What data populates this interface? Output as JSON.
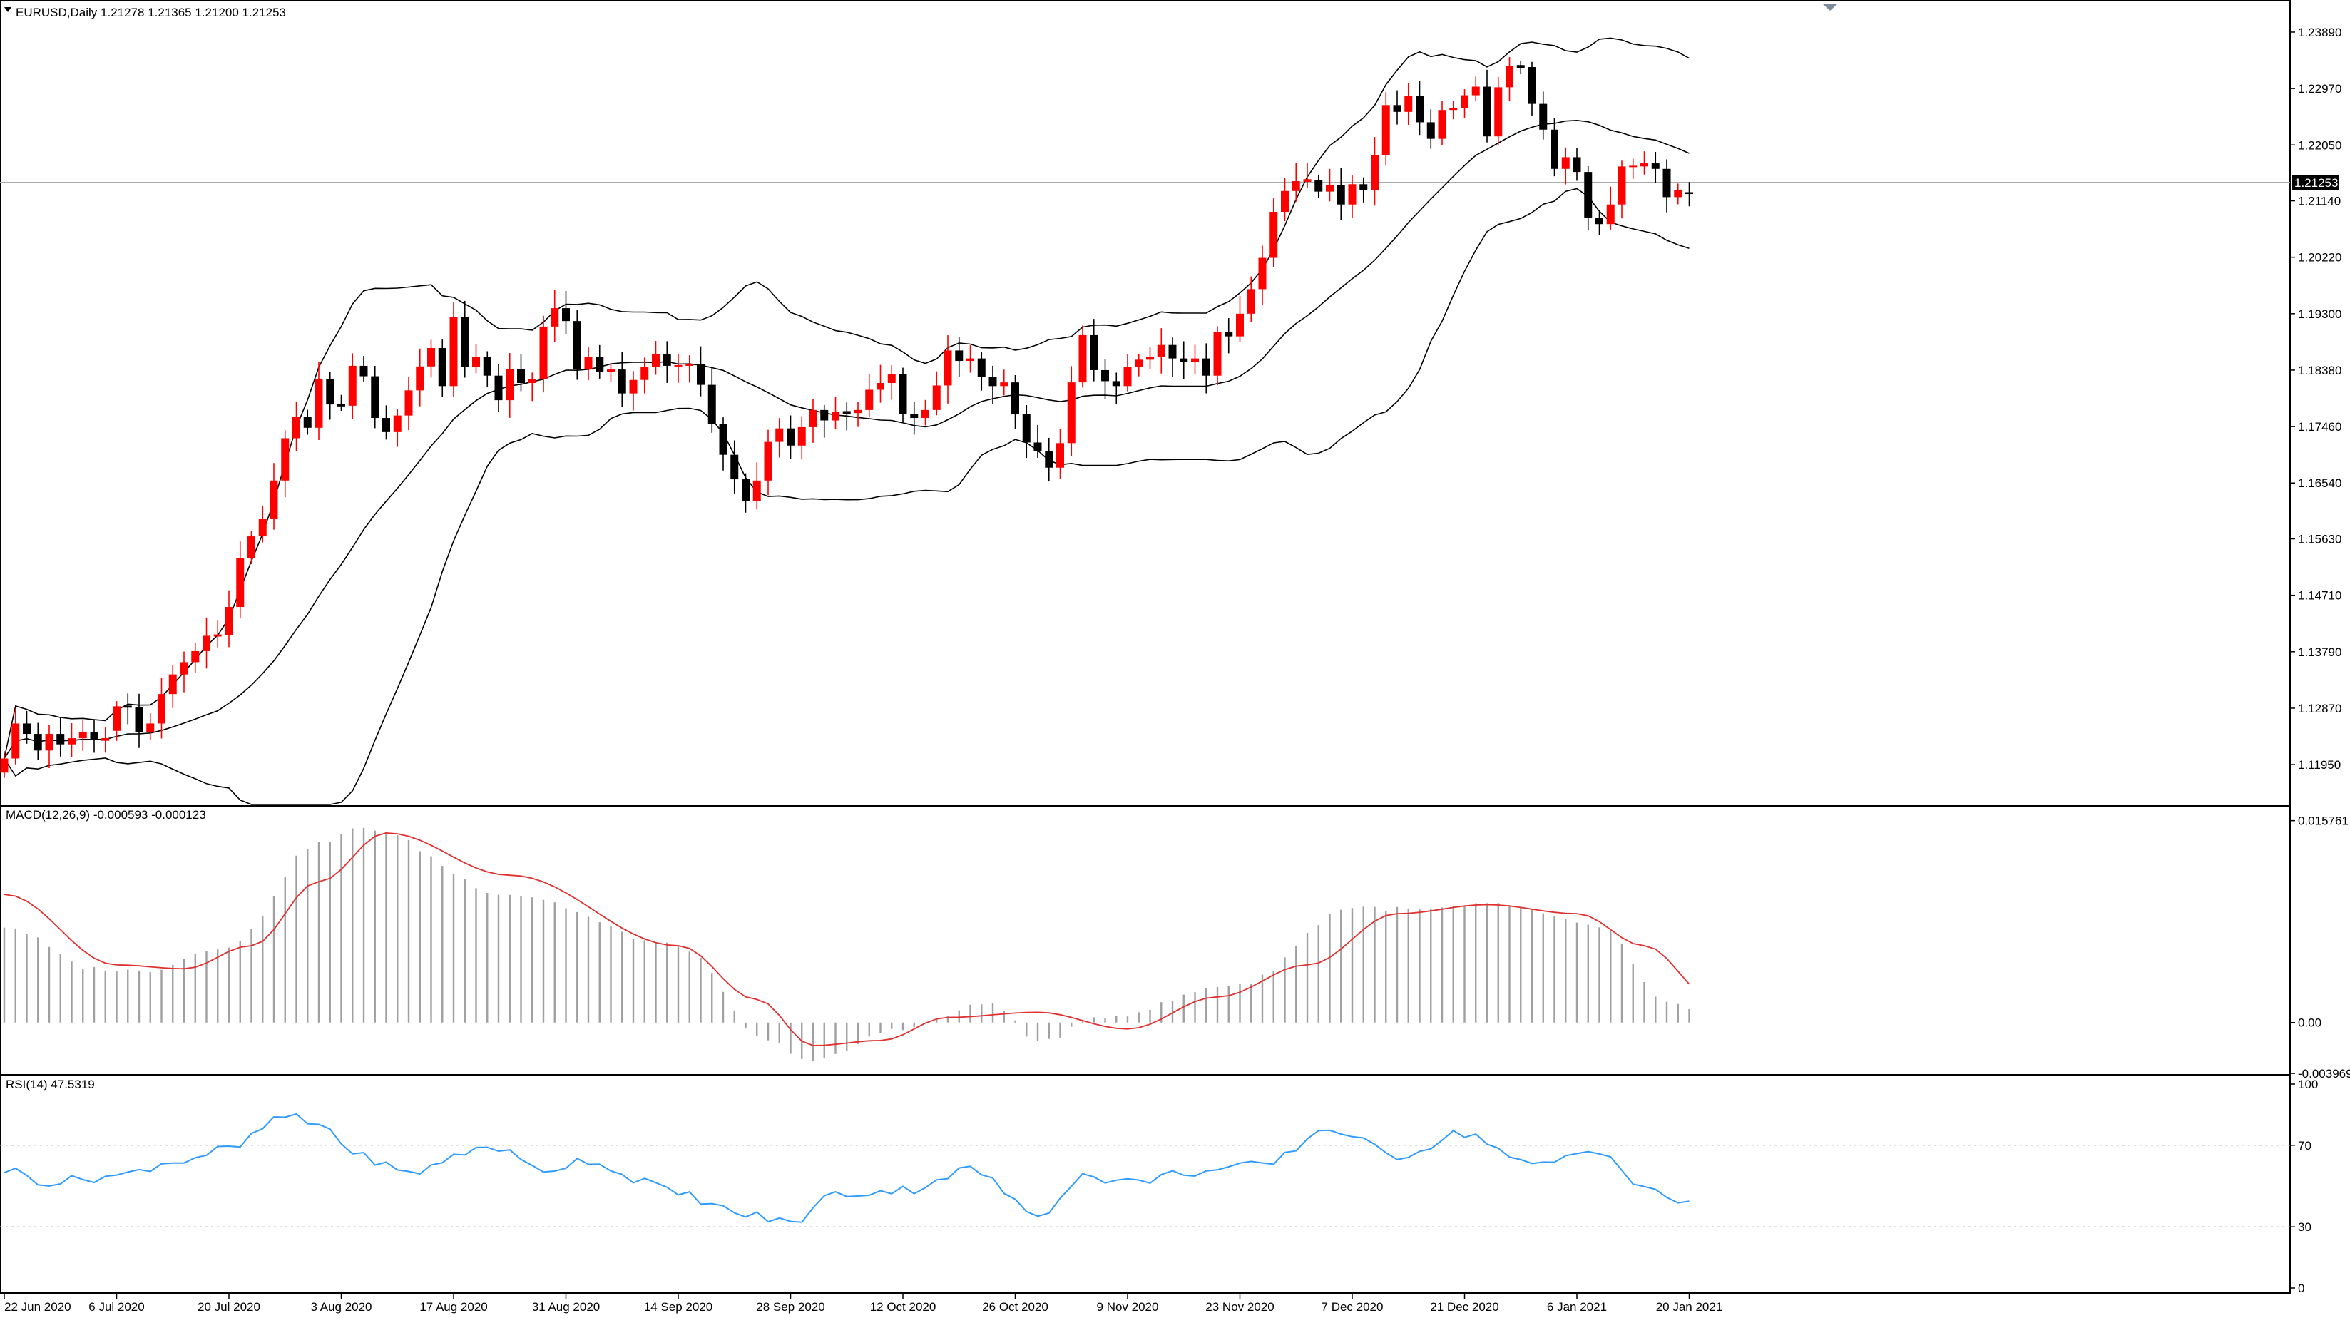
{
  "window": {
    "main_title": "EURUSD,Daily  1.21278 1.21365 1.21200 1.21253",
    "macd_title": "MACD(12,26,9) -0.000593 -0.000123",
    "rsi_title": "RSI(14) 47.5319",
    "current_price": "1.21253"
  },
  "colors": {
    "bull": "#ff0000",
    "bear": "#000000",
    "bands": "#000000",
    "macd_hist": "#a0a0a0",
    "macd_signal": "#e03030",
    "rsi": "#2f9bff",
    "grid_border": "#000000"
  },
  "chart_data": [
    {
      "type": "candlestick",
      "panel": "main",
      "symbol": "EURUSD",
      "timeframe": "Daily",
      "ylim": [
        1.113,
        1.2425
      ],
      "y_ticks": [
        "1.23890",
        "1.22970",
        "1.22050",
        "1.21140",
        "1.20220",
        "1.19300",
        "1.18380",
        "1.17460",
        "1.16540",
        "1.15630",
        "1.14710",
        "1.13790",
        "1.12870",
        "1.11950"
      ],
      "x_ticks": [
        "22 Jun 2020",
        "6 Jul 2020",
        "20 Jul 2020",
        "3 Aug 2020",
        "17 Aug 2020",
        "31 Aug 2020",
        "14 Sep 2020",
        "28 Sep 2020",
        "12 Oct 2020",
        "26 Oct 2020",
        "9 Nov 2020",
        "23 Nov 2020",
        "7 Dec 2020",
        "21 Dec 2020",
        "6 Jan 2021",
        "20 Jan 2021"
      ],
      "x_tick_index": [
        0,
        10,
        20,
        30,
        40,
        50,
        60,
        70,
        80,
        90,
        100,
        110,
        120,
        130,
        140,
        150
      ],
      "current_price": 1.21253,
      "candles_close": [
        1.1205,
        1.1262,
        1.1245,
        1.1218,
        1.1245,
        1.1228,
        1.1238,
        1.1248,
        1.1235,
        1.1237,
        1.129,
        1.1289,
        1.1248,
        1.1262,
        1.131,
        1.1342,
        1.1362,
        1.138,
        1.1405,
        1.1406,
        1.1452,
        1.1532,
        1.1567,
        1.1595,
        1.1658,
        1.1727,
        1.1762,
        1.1744,
        1.1823,
        1.1782,
        1.178,
        1.1845,
        1.1828,
        1.176,
        1.1737,
        1.1764,
        1.1805,
        1.1844,
        1.1874,
        1.1812,
        1.1924,
        1.1843,
        1.1859,
        1.1829,
        1.1789,
        1.184,
        1.1817,
        1.1824,
        1.1909,
        1.1939,
        1.1918,
        1.1839,
        1.186,
        1.1835,
        1.1839,
        1.18,
        1.1822,
        1.1843,
        1.1864,
        1.1845,
        1.1845,
        1.1848,
        1.1814,
        1.175,
        1.17,
        1.166,
        1.1625,
        1.1658,
        1.1721,
        1.1743,
        1.1715,
        1.1745,
        1.1773,
        1.1756,
        1.177,
        1.1768,
        1.1773,
        1.1806,
        1.1817,
        1.1832,
        1.1766,
        1.176,
        1.1773,
        1.1813,
        1.187,
        1.1853,
        1.1857,
        1.1827,
        1.1812,
        1.1818,
        1.1767,
        1.172,
        1.1706,
        1.1679,
        1.1719,
        1.1818,
        1.1895,
        1.1838,
        1.182,
        1.1812,
        1.1843,
        1.1855,
        1.186,
        1.1879,
        1.1857,
        1.1851,
        1.1857,
        1.1829,
        1.19,
        1.1893,
        1.193,
        1.197,
        1.2021,
        1.2096,
        1.213,
        1.2146,
        1.2148,
        1.2129,
        1.214,
        1.2108,
        1.2141,
        1.2131,
        1.2188,
        1.227,
        1.2259,
        1.2285,
        1.2242,
        1.2215,
        1.2262,
        1.2265,
        1.2286,
        1.23,
        1.2219,
        1.2299,
        1.2334,
        1.2332,
        1.2272,
        1.223,
        1.2166,
        1.2185,
        1.2161,
        1.2086,
        1.2076,
        1.2108,
        1.217,
        1.217,
        1.2175,
        1.2166,
        1.212,
        1.2132,
        1.2125
      ],
      "candles_open": [
        1.1182,
        1.1205,
        1.1262,
        1.1245,
        1.1218,
        1.1245,
        1.1228,
        1.1238,
        1.1248,
        1.1235,
        1.125,
        1.129,
        1.1289,
        1.1248,
        1.1262,
        1.131,
        1.1342,
        1.1362,
        1.138,
        1.1405,
        1.1406,
        1.1452,
        1.1532,
        1.1567,
        1.1595,
        1.1658,
        1.1727,
        1.1762,
        1.1744,
        1.1823,
        1.1782,
        1.178,
        1.1845,
        1.1828,
        1.176,
        1.1737,
        1.1764,
        1.1805,
        1.1844,
        1.1874,
        1.1812,
        1.1924,
        1.1843,
        1.1859,
        1.1829,
        1.1789,
        1.184,
        1.1817,
        1.1824,
        1.1909,
        1.1939,
        1.1918,
        1.1839,
        1.186,
        1.1835,
        1.1839,
        1.18,
        1.1822,
        1.1843,
        1.1864,
        1.1845,
        1.1845,
        1.1848,
        1.1814,
        1.175,
        1.17,
        1.166,
        1.1625,
        1.1658,
        1.1721,
        1.1743,
        1.1715,
        1.1745,
        1.1773,
        1.1756,
        1.177,
        1.1768,
        1.1773,
        1.1806,
        1.1817,
        1.1832,
        1.1766,
        1.176,
        1.1773,
        1.1813,
        1.187,
        1.1853,
        1.1857,
        1.1827,
        1.1812,
        1.1818,
        1.1767,
        1.172,
        1.1706,
        1.1679,
        1.1719,
        1.1818,
        1.1895,
        1.1838,
        1.182,
        1.1812,
        1.1843,
        1.1855,
        1.186,
        1.1879,
        1.1857,
        1.1851,
        1.1857,
        1.1829,
        1.19,
        1.1893,
        1.193,
        1.197,
        1.2021,
        1.2096,
        1.213,
        1.2146,
        1.2148,
        1.2129,
        1.214,
        1.2108,
        1.2141,
        1.2131,
        1.2188,
        1.227,
        1.2259,
        1.2285,
        1.2242,
        1.2215,
        1.2262,
        1.2265,
        1.2286,
        1.23,
        1.2219,
        1.2299,
        1.2334,
        1.2332,
        1.2272,
        1.223,
        1.2166,
        1.2185,
        1.2161,
        1.2086,
        1.2076,
        1.2108,
        1.217,
        1.217,
        1.2175,
        1.2166,
        1.212,
        1.2128
      ]
    },
    {
      "type": "bar",
      "panel": "macd",
      "title": "MACD(12,26,9) -0.000593 -0.000123",
      "ylim": [
        -0.003969,
        0.0168
      ],
      "y_ticks": [
        "0.015761",
        "0.00",
        "-0.003969"
      ],
      "histogram_keypoints": [
        [
          0,
          0.0075
        ],
        [
          8,
          0.0042
        ],
        [
          12,
          0.004
        ],
        [
          20,
          0.006
        ],
        [
          28,
          0.014
        ],
        [
          32,
          0.0152
        ],
        [
          45,
          0.01
        ],
        [
          60,
          0.006
        ],
        [
          68,
          -0.0015
        ],
        [
          72,
          -0.003
        ],
        [
          80,
          -0.0004
        ],
        [
          88,
          0.0015
        ],
        [
          92,
          -0.0015
        ],
        [
          98,
          0.0005
        ],
        [
          110,
          0.003
        ],
        [
          120,
          0.009
        ],
        [
          126,
          0.0088
        ],
        [
          133,
          0.0092
        ],
        [
          142,
          0.0075
        ],
        [
          148,
          0.0015
        ],
        [
          152,
          0.0002
        ],
        [
          160,
          -0.0006
        ]
      ],
      "signal_keypoints": [
        [
          0,
          0.01
        ],
        [
          10,
          0.0045
        ],
        [
          16,
          0.0042
        ],
        [
          22,
          0.006
        ],
        [
          28,
          0.011
        ],
        [
          34,
          0.0148
        ],
        [
          45,
          0.0115
        ],
        [
          60,
          0.006
        ],
        [
          67,
          0.0018
        ],
        [
          72,
          -0.0018
        ],
        [
          78,
          -0.0014
        ],
        [
          84,
          0.0004
        ],
        [
          92,
          0.0008
        ],
        [
          100,
          -0.0005
        ],
        [
          108,
          0.002
        ],
        [
          116,
          0.0045
        ],
        [
          124,
          0.0085
        ],
        [
          132,
          0.0092
        ],
        [
          140,
          0.0085
        ],
        [
          146,
          0.006
        ],
        [
          152,
          0.002
        ],
        [
          160,
          -0.0001
        ]
      ]
    },
    {
      "type": "line",
      "panel": "rsi",
      "title": "RSI(14) 47.5319",
      "ylim": [
        0,
        100
      ],
      "y_ticks": [
        "100",
        "70",
        "30",
        "0"
      ],
      "levels": [
        70,
        30
      ],
      "rsi_keypoints": [
        [
          0,
          58
        ],
        [
          4,
          52
        ],
        [
          10,
          55
        ],
        [
          15,
          62
        ],
        [
          20,
          68
        ],
        [
          25,
          84
        ],
        [
          28,
          80
        ],
        [
          32,
          64
        ],
        [
          36,
          56
        ],
        [
          40,
          64
        ],
        [
          43,
          70
        ],
        [
          48,
          58
        ],
        [
          52,
          63
        ],
        [
          56,
          54
        ],
        [
          60,
          46
        ],
        [
          66,
          36
        ],
        [
          70,
          32
        ],
        [
          74,
          46
        ],
        [
          80,
          48
        ],
        [
          86,
          58
        ],
        [
          92,
          36
        ],
        [
          96,
          55
        ],
        [
          100,
          52
        ],
        [
          106,
          57
        ],
        [
          112,
          60
        ],
        [
          118,
          78
        ],
        [
          124,
          65
        ],
        [
          130,
          76
        ],
        [
          136,
          60
        ],
        [
          142,
          68
        ],
        [
          146,
          48
        ],
        [
          150,
          42
        ],
        [
          154,
          50
        ],
        [
          160,
          47.5
        ]
      ]
    }
  ]
}
